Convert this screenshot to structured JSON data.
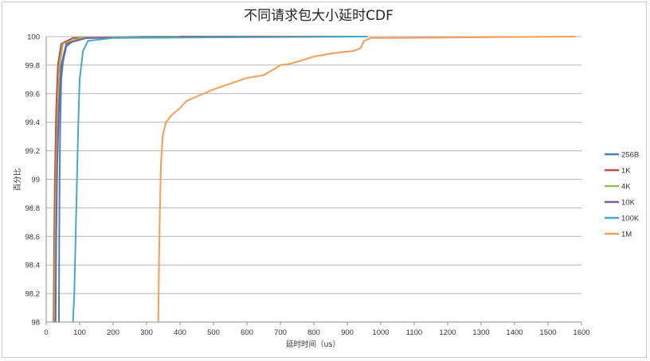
{
  "chart_data": {
    "type": "line",
    "title": "不同请求包大小延时CDF",
    "xlabel": "延时时间（us）",
    "ylabel": "百分比",
    "xlim": [
      0,
      1600
    ],
    "ylim": [
      98,
      100
    ],
    "xticks": [
      "0",
      "100",
      "200",
      "300",
      "400",
      "500",
      "600",
      "700",
      "800",
      "900",
      "1000",
      "1100",
      "1200",
      "1300",
      "1400",
      "1500",
      "1600"
    ],
    "yticks": [
      "98",
      "98.2",
      "98.4",
      "98.6",
      "98.8",
      "99",
      "99.2",
      "99.4",
      "99.6",
      "99.8",
      "100"
    ],
    "grid": "horizontal",
    "legend_position": "right",
    "series": [
      {
        "name": "256B",
        "color": "#4a7ebb",
        "points": [
          [
            38,
            98
          ],
          [
            39,
            98.6
          ],
          [
            40,
            99.0
          ],
          [
            42,
            99.4
          ],
          [
            45,
            99.7
          ],
          [
            50,
            99.82
          ],
          [
            60,
            99.93
          ],
          [
            80,
            99.97
          ],
          [
            120,
            99.99
          ],
          [
            300,
            100
          ],
          [
            800,
            100
          ]
        ]
      },
      {
        "name": "1K",
        "color": "#be4b48",
        "points": [
          [
            22,
            98
          ],
          [
            24,
            98.6
          ],
          [
            26,
            99.0
          ],
          [
            30,
            99.5
          ],
          [
            35,
            99.8
          ],
          [
            45,
            99.95
          ],
          [
            80,
            99.99
          ],
          [
            400,
            100
          ],
          [
            955,
            100
          ]
        ]
      },
      {
        "name": "4K",
        "color": "#98b954",
        "points": [
          [
            24,
            98
          ],
          [
            26,
            98.5
          ],
          [
            30,
            99.1
          ],
          [
            35,
            99.5
          ],
          [
            40,
            99.8
          ],
          [
            50,
            99.95
          ],
          [
            100,
            99.99
          ],
          [
            400,
            100
          ]
        ]
      },
      {
        "name": "10K",
        "color": "#7d60a0",
        "points": [
          [
            28,
            98
          ],
          [
            30,
            98.6
          ],
          [
            33,
            99.1
          ],
          [
            38,
            99.5
          ],
          [
            45,
            99.8
          ],
          [
            60,
            99.95
          ],
          [
            120,
            99.99
          ],
          [
            600,
            100
          ]
        ]
      },
      {
        "name": "100K",
        "color": "#46aac5",
        "points": [
          [
            80,
            98
          ],
          [
            84,
            98.2
          ],
          [
            88,
            98.6
          ],
          [
            92,
            99.0
          ],
          [
            96,
            99.4
          ],
          [
            100,
            99.7
          ],
          [
            110,
            99.9
          ],
          [
            125,
            99.97
          ],
          [
            200,
            99.99
          ],
          [
            960,
            100
          ]
        ]
      },
      {
        "name": "1M",
        "color": "#f59d56",
        "points": [
          [
            335,
            98
          ],
          [
            337,
            98.4
          ],
          [
            340,
            98.8
          ],
          [
            343,
            99.1
          ],
          [
            348,
            99.3
          ],
          [
            358,
            99.4
          ],
          [
            375,
            99.45
          ],
          [
            400,
            99.5
          ],
          [
            420,
            99.55
          ],
          [
            450,
            99.58
          ],
          [
            500,
            99.63
          ],
          [
            550,
            99.67
          ],
          [
            600,
            99.71
          ],
          [
            650,
            99.73
          ],
          [
            680,
            99.77
          ],
          [
            700,
            99.8
          ],
          [
            730,
            99.81
          ],
          [
            760,
            99.83
          ],
          [
            800,
            99.86
          ],
          [
            850,
            99.88
          ],
          [
            880,
            99.89
          ],
          [
            920,
            99.9
          ],
          [
            930,
            99.91
          ],
          [
            940,
            99.92
          ],
          [
            950,
            99.97
          ],
          [
            970,
            99.99
          ],
          [
            1000,
            99.99
          ],
          [
            1300,
            99.995
          ],
          [
            1580,
            100
          ]
        ]
      }
    ]
  }
}
